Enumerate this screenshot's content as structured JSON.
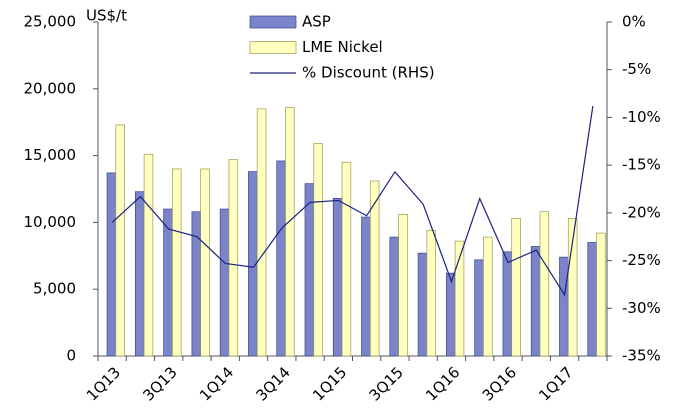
{
  "chart_data": {
    "type": "bar",
    "y_axis_label": "US$/t",
    "categories": [
      "1Q13",
      null,
      "3Q13",
      null,
      "1Q14",
      null,
      "3Q14",
      null,
      "1Q15",
      null,
      "3Q15",
      null,
      "1Q16",
      null,
      "3Q16",
      null,
      "1Q17",
      null
    ],
    "series": [
      {
        "name": "ASP",
        "color": "#7b84c9",
        "values": [
          13700,
          12300,
          11000,
          10800,
          11000,
          13800,
          14600,
          12900,
          11800,
          10400,
          8900,
          7700,
          6200,
          7200,
          7800,
          8200,
          7400,
          8500
        ]
      },
      {
        "name": "LME Nickel",
        "color": "#ffffc0",
        "values": [
          17300,
          15100,
          14000,
          14000,
          14700,
          18500,
          18600,
          15900,
          14500,
          13100,
          10600,
          9400,
          8600,
          8900,
          10300,
          10800,
          10300,
          9200
        ]
      },
      {
        "name": "% Discount (RHS)",
        "color": "#1a2380",
        "type": "line",
        "axis": "y2",
        "values": [
          -21,
          -18.3,
          -21.7,
          -22.5,
          -25.3,
          -25.7,
          -21.6,
          -18.9,
          -18.7,
          -20.3,
          -15.7,
          -19.1,
          -27.2,
          -18.5,
          -25.2,
          -23.9,
          -28.6,
          -8.8
        ]
      }
    ],
    "ylim": [
      0,
      25000
    ],
    "yticks": [
      0,
      {
        "value": 5000,
        "label": "5,000"
      },
      {
        "value": 10000,
        "label": "10,000"
      },
      {
        "value": 15000,
        "label": "15,000"
      },
      {
        "value": 20000,
        "label": "20,000"
      },
      {
        "value": 25000,
        "label": "25,000"
      }
    ],
    "y2lim": [
      -35,
      0
    ],
    "y2ticks": [
      {
        "value": 0,
        "label": "0%"
      },
      {
        "value": -5,
        "label": "-5%"
      },
      {
        "value": -10,
        "label": "-10%"
      },
      {
        "value": -15,
        "label": "-15%"
      },
      {
        "value": -20,
        "label": "-20%"
      },
      {
        "value": -25,
        "label": "-25%"
      },
      {
        "value": -30,
        "label": "-30%"
      },
      {
        "value": -35,
        "label": "-35%"
      }
    ],
    "grid": false
  }
}
